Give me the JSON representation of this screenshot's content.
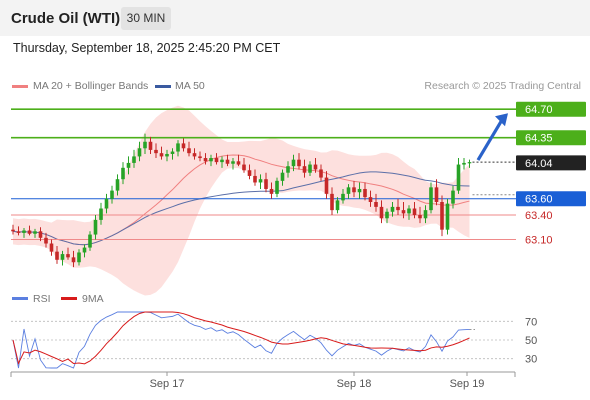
{
  "header": {
    "instrument": "Crude Oil (WTI)",
    "timeframe": "30 MIN",
    "datetime": "Thursday, September 18, 2025 2:45:20 PM CET"
  },
  "legend": {
    "ma20": "MA 20 + Bollinger Bands",
    "ma50": "MA 50",
    "credit": "Research © 2025 Trading Central",
    "rsi": "RSI",
    "rsi_ma": "9MA"
  },
  "colors": {
    "bull": "#27a327",
    "bear": "#c62828",
    "ma20": "#f08080",
    "band": "#fde0de",
    "ma50": "#5b6fa8",
    "green_level": "#4caf1a",
    "blue_level": "#1a5fd6",
    "red_level": "#ef8a8a",
    "current": "#222222",
    "rsi_line": "#5b7fe0",
    "rsi_ma_line": "#d81b1b"
  },
  "chart_data": {
    "type": "candlestick",
    "y_range": [
      62.7,
      64.85
    ],
    "x_labels": [
      "Sep 17",
      "Sep 18",
      "Sep 19"
    ],
    "levels": [
      {
        "value": 64.7,
        "label": "64.70",
        "kind": "resistance"
      },
      {
        "value": 64.35,
        "label": "64.35",
        "kind": "resistance"
      },
      {
        "value": 64.04,
        "label": "64.04",
        "kind": "current"
      },
      {
        "value": 63.6,
        "label": "63.60",
        "kind": "pivot"
      },
      {
        "value": 63.4,
        "label": "63.40",
        "kind": "support"
      },
      {
        "value": 63.1,
        "label": "63.10",
        "kind": "support"
      }
    ],
    "candles": [
      [
        63.22,
        63.28,
        63.16,
        63.2
      ],
      [
        63.2,
        63.26,
        63.15,
        63.18
      ],
      [
        63.18,
        63.24,
        63.12,
        63.21
      ],
      [
        63.21,
        63.27,
        63.15,
        63.17
      ],
      [
        63.17,
        63.23,
        63.12,
        63.2
      ],
      [
        63.2,
        63.25,
        63.08,
        63.12
      ],
      [
        63.12,
        63.18,
        63.0,
        63.05
      ],
      [
        63.05,
        63.1,
        62.9,
        62.95
      ],
      [
        62.95,
        63.02,
        62.8,
        62.85
      ],
      [
        62.85,
        62.96,
        62.78,
        62.92
      ],
      [
        62.92,
        63.0,
        62.85,
        62.88
      ],
      [
        62.88,
        62.96,
        62.76,
        62.82
      ],
      [
        62.82,
        62.98,
        62.78,
        62.94
      ],
      [
        62.94,
        63.04,
        62.88,
        63.0
      ],
      [
        63.0,
        63.2,
        62.96,
        63.16
      ],
      [
        63.16,
        63.4,
        63.1,
        63.34
      ],
      [
        63.34,
        63.55,
        63.28,
        63.48
      ],
      [
        63.48,
        63.66,
        63.42,
        63.6
      ],
      [
        63.6,
        63.76,
        63.54,
        63.7
      ],
      [
        63.7,
        63.9,
        63.64,
        63.84
      ],
      [
        63.84,
        64.05,
        63.78,
        63.98
      ],
      [
        63.98,
        64.12,
        63.9,
        64.04
      ],
      [
        64.04,
        64.2,
        63.98,
        64.12
      ],
      [
        64.12,
        64.3,
        64.06,
        64.22
      ],
      [
        64.22,
        64.4,
        64.15,
        64.3
      ],
      [
        64.3,
        64.36,
        64.15,
        64.2
      ],
      [
        64.2,
        64.28,
        64.1,
        64.16
      ],
      [
        64.16,
        64.24,
        64.08,
        64.12
      ],
      [
        64.12,
        64.2,
        64.06,
        64.15
      ],
      [
        64.15,
        64.22,
        64.08,
        64.18
      ],
      [
        64.18,
        64.32,
        64.12,
        64.28
      ],
      [
        64.28,
        64.34,
        64.18,
        64.22
      ],
      [
        64.22,
        64.3,
        64.12,
        64.16
      ],
      [
        64.16,
        64.22,
        64.08,
        64.12
      ],
      [
        64.12,
        64.18,
        64.06,
        64.1
      ],
      [
        64.1,
        64.16,
        64.02,
        64.06
      ],
      [
        64.06,
        64.14,
        64.0,
        64.1
      ],
      [
        64.1,
        64.16,
        64.02,
        64.05
      ],
      [
        64.05,
        64.12,
        63.98,
        64.08
      ],
      [
        64.08,
        64.14,
        64.0,
        64.03
      ],
      [
        64.03,
        64.1,
        63.96,
        64.06
      ],
      [
        64.06,
        64.14,
        64.0,
        64.02
      ],
      [
        64.02,
        64.1,
        63.92,
        63.95
      ],
      [
        63.95,
        64.02,
        63.84,
        63.88
      ],
      [
        63.88,
        63.96,
        63.76,
        63.8
      ],
      [
        63.8,
        63.9,
        63.72,
        63.84
      ],
      [
        63.84,
        63.92,
        63.68,
        63.72
      ],
      [
        63.72,
        63.8,
        63.6,
        63.66
      ],
      [
        63.66,
        63.86,
        63.62,
        63.82
      ],
      [
        63.82,
        63.96,
        63.76,
        63.92
      ],
      [
        63.92,
        64.06,
        63.86,
        64.0
      ],
      [
        64.0,
        64.14,
        63.94,
        64.08
      ],
      [
        64.08,
        64.16,
        63.96,
        64.0
      ],
      [
        64.0,
        64.08,
        63.86,
        63.92
      ],
      [
        63.92,
        64.06,
        63.88,
        64.02
      ],
      [
        64.02,
        64.1,
        63.92,
        63.96
      ],
      [
        63.96,
        64.02,
        63.82,
        63.86
      ],
      [
        63.86,
        63.94,
        63.6,
        63.66
      ],
      [
        63.66,
        63.74,
        63.4,
        63.46
      ],
      [
        63.46,
        63.62,
        63.42,
        63.58
      ],
      [
        63.58,
        63.72,
        63.54,
        63.66
      ],
      [
        63.66,
        63.78,
        63.6,
        63.74
      ],
      [
        63.74,
        63.82,
        63.62,
        63.68
      ],
      [
        63.68,
        63.8,
        63.6,
        63.72
      ],
      [
        63.72,
        63.8,
        63.58,
        63.62
      ],
      [
        63.62,
        63.7,
        63.5,
        63.56
      ],
      [
        63.56,
        63.66,
        63.44,
        63.5
      ],
      [
        63.5,
        63.58,
        63.3,
        63.36
      ],
      [
        63.36,
        63.48,
        63.3,
        63.44
      ],
      [
        63.44,
        63.56,
        63.38,
        63.5
      ],
      [
        63.5,
        63.6,
        63.4,
        63.46
      ],
      [
        63.46,
        63.56,
        63.36,
        63.42
      ],
      [
        63.42,
        63.52,
        63.34,
        63.48
      ],
      [
        63.48,
        63.56,
        63.36,
        63.4
      ],
      [
        63.4,
        63.5,
        63.3,
        63.36
      ],
      [
        63.36,
        63.52,
        63.3,
        63.46
      ],
      [
        63.46,
        63.8,
        63.42,
        63.74
      ],
      [
        63.74,
        63.84,
        63.52,
        63.56
      ],
      [
        63.56,
        63.64,
        63.14,
        63.22
      ],
      [
        63.22,
        63.6,
        63.16,
        63.54
      ],
      [
        63.54,
        63.76,
        63.48,
        63.7
      ],
      [
        63.7,
        64.1,
        63.66,
        64.02
      ],
      [
        64.02,
        64.1,
        63.96,
        64.04
      ],
      [
        64.04,
        64.08,
        63.98,
        64.05
      ]
    ],
    "rsi": {
      "levels": [
        70,
        50,
        30
      ],
      "y_range": [
        20,
        80
      ]
    }
  }
}
